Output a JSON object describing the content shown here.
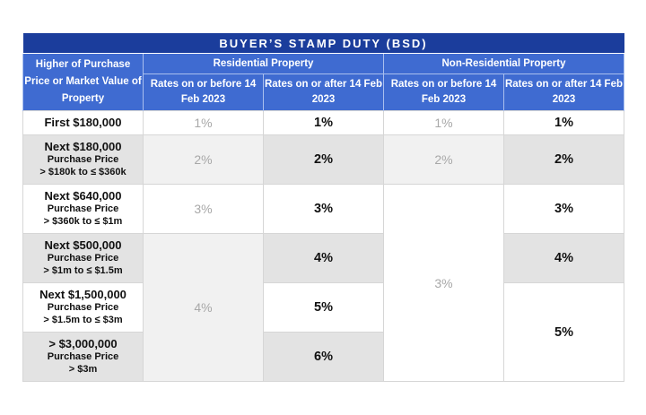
{
  "table": {
    "title": "BUYER’S STAMP DUTY (BSD)",
    "corner_header": "Higher of Purchase Price or Market Value of Property",
    "groups": {
      "residential": "Residential Property",
      "non_residential": "Non-Residential Property"
    },
    "subheaders": {
      "res_old": "Rates on or before 14 Feb 2023",
      "res_new": "Rates on or after 14 Feb 2023",
      "nonres_old": "Rates on or before 14 Feb 2023",
      "nonres_new": "Rates on or after 14 Feb 2023"
    },
    "rows": [
      {
        "tier": "First $180,000",
        "detail_1": "",
        "detail_2": "",
        "res_old": "1%",
        "res_new": "1%",
        "nonres_old": "1%",
        "nonres_new": "1%"
      },
      {
        "tier": "Next $180,000",
        "detail_1": "Purchase Price",
        "detail_2": "> $180k to ≤ $360k",
        "res_old": "2%",
        "res_new": "2%",
        "nonres_old": "2%",
        "nonres_new": "2%"
      },
      {
        "tier": "Next $640,000",
        "detail_1": "Purchase Price",
        "detail_2": "> $360k to ≤ $1m",
        "res_old": "3%",
        "res_new": "3%",
        "nonres_old": "3%",
        "nonres_new": "3%"
      },
      {
        "tier": "Next $500,000",
        "detail_1": "Purchase Price",
        "detail_2": "> $1m to ≤ $1.5m",
        "res_old": "4%",
        "res_new": "4%",
        "nonres_new": "4%"
      },
      {
        "tier": "Next $1,500,000",
        "detail_1": "Purchase Price",
        "detail_2": "> $1.5m to ≤ $3m",
        "res_new": "5%",
        "nonres_new": "5%"
      },
      {
        "tier": "> $3,000,000",
        "detail_1": "Purchase Price",
        "detail_2": "> $3m",
        "res_new": "6%"
      }
    ]
  }
}
